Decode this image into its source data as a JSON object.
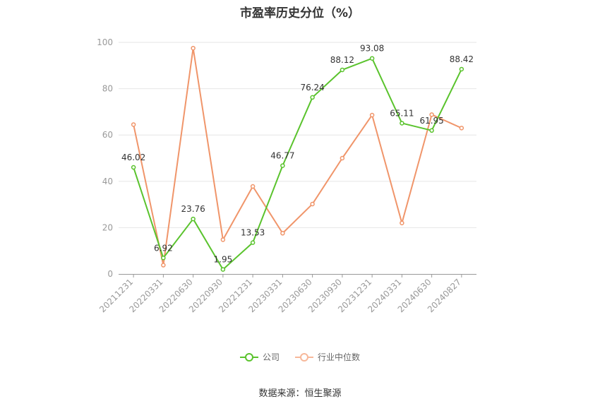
{
  "chart_data": {
    "type": "line",
    "title": "市盈率历史分位（%）",
    "categories": [
      "20211231",
      "20220331",
      "20220630",
      "20220930",
      "20221231",
      "20230331",
      "20230630",
      "20230930",
      "20231231",
      "20240331",
      "20240630",
      "20240827"
    ],
    "series": [
      {
        "name": "公司",
        "color": "#5ac32d",
        "values": [
          46.02,
          6.92,
          23.76,
          1.95,
          13.53,
          46.77,
          76.24,
          88.12,
          93.08,
          65.11,
          61.95,
          88.42
        ],
        "labels": [
          "46.02",
          "6.92",
          "23.76",
          "1.95",
          "13.53",
          "46.77",
          "76.24",
          "88.12",
          "93.08",
          "65.11",
          "61.95",
          "88.42"
        ]
      },
      {
        "name": "行业中位数",
        "color": "#f0956a",
        "values": [
          64.5,
          3.8,
          97.5,
          14.8,
          37.8,
          17.6,
          30.2,
          50.0,
          68.6,
          22.0,
          68.8,
          63.0
        ]
      }
    ],
    "ylim": [
      0,
      100
    ],
    "yticks": [
      "0",
      "20",
      "40",
      "60",
      "80",
      "100"
    ],
    "grid": true,
    "legend": "bottom-center"
  },
  "source": "数据来源：恒生聚源"
}
